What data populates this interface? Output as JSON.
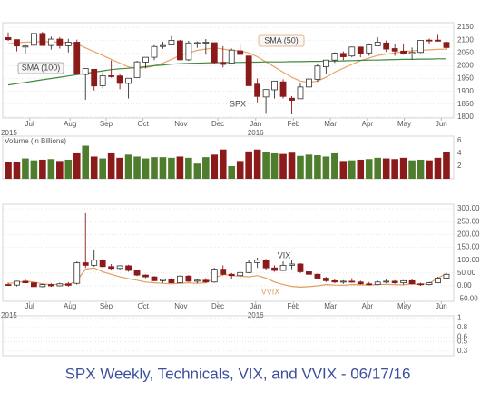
{
  "title": "SPX Weekly, Technicals, VIX, and VVIX - 06/17/16",
  "chart_data": [
    {
      "type": "candlestick",
      "name": "SPX",
      "up_color": "#ffffff",
      "down_color": "#8b1a1a",
      "open": [
        2110,
        2102,
        2073,
        2080,
        2126,
        2079,
        2104,
        2078,
        2092,
        1966,
        1986,
        1922,
        1961,
        1960,
        1931,
        1954,
        2014,
        2033,
        2075,
        2081,
        2097,
        2023,
        2090,
        2091,
        2090,
        2013,
        2010,
        2058,
        2038,
        1928,
        1878,
        1906,
        1937,
        1873,
        1871,
        1917,
        1947,
        1996,
        2022,
        2048,
        2038,
        2073,
        2050,
        2078,
        2089,
        2067,
        2057,
        2047,
        2052,
        2100,
        2100,
        2091
      ],
      "high": [
        2130,
        2102,
        2081,
        2127,
        2132,
        2114,
        2112,
        2105,
        2102,
        1989,
        1987,
        1975,
        2021,
        1970,
        1952,
        2019,
        2033,
        2080,
        2094,
        2116,
        2101,
        2097,
        2095,
        2104,
        2090,
        2076,
        2067,
        2081,
        2038,
        1950,
        1908,
        1940,
        1947,
        1881,
        1930,
        1962,
        2009,
        2022,
        2052,
        2056,
        2075,
        2074,
        2087,
        2111,
        2099,
        2084,
        2084,
        2071,
        2100,
        2106,
        2120,
        2095
      ],
      "low": [
        2097,
        2056,
        2044,
        2080,
        2079,
        2063,
        2067,
        2052,
        1970,
        1867,
        1903,
        1911,
        1953,
        1908,
        1872,
        1954,
        1990,
        2022,
        2066,
        2081,
        2022,
        2019,
        2070,
        2043,
        2007,
        1993,
        2005,
        2043,
        1922,
        1857,
        1812,
        1872,
        1872,
        1810,
        1871,
        1891,
        1937,
        1969,
        2011,
        2022,
        2033,
        2033,
        2039,
        2078,
        2054,
        2039,
        2043,
        2025,
        2049,
        2085,
        2094,
        2062
      ],
      "close": [
        2102,
        2077,
        2077,
        2126,
        2079,
        2104,
        2078,
        2092,
        1971,
        1989,
        1921,
        1961,
        1958,
        1931,
        1951,
        2015,
        2033,
        2075,
        2079,
        2099,
        2023,
        2089,
        2090,
        2092,
        2012,
        2005,
        2061,
        2044,
        1922,
        1880,
        1907,
        1940,
        1880,
        1865,
        1917,
        1948,
        1999,
        2022,
        2049,
        2035,
        2073,
        2047,
        2081,
        2092,
        2065,
        2057,
        2047,
        2052,
        2099,
        2099,
        2096,
        2071
      ],
      "series": [
        {
          "name": "SMA (50)",
          "color": "#e8a46a",
          "values": [
            2085,
            2090,
            2092,
            2093,
            2094,
            2093,
            2092,
            2090,
            2085,
            2070,
            2055,
            2040,
            2025,
            2010,
            1995,
            1990,
            1992,
            2000,
            2010,
            2025,
            2040,
            2050,
            2060,
            2065,
            2070,
            2065,
            2060,
            2058,
            2050,
            2035,
            2015,
            1995,
            1975,
            1955,
            1940,
            1935,
            1940,
            1955,
            1975,
            1990,
            2005,
            2020,
            2030,
            2040,
            2045,
            2050,
            2055,
            2058,
            2060,
            2062,
            2064,
            2065
          ]
        },
        {
          "name": "SMA (100)",
          "color": "#3d8a3d",
          "values": [
            1925,
            1930,
            1935,
            1940,
            1945,
            1950,
            1955,
            1960,
            1965,
            1970,
            1975,
            1980,
            1985,
            1988,
            1990,
            1993,
            1996,
            2000,
            2003,
            2006,
            2008,
            2009,
            2010,
            2011,
            2012,
            2012,
            2013,
            2013,
            2014,
            2014,
            2015,
            2015,
            2015,
            2016,
            2016,
            2017,
            2017,
            2018,
            2018,
            2019,
            2020,
            2021,
            2022,
            2022,
            2023,
            2024,
            2025,
            2025,
            2026,
            2026,
            2027,
            2027
          ]
        }
      ],
      "ylim": [
        1796,
        2168
      ],
      "yticks": [
        1800,
        1850,
        1900,
        1950,
        2000,
        2050,
        2100,
        2150
      ],
      "grid": true,
      "xticks": [
        {
          "value": 2.5,
          "label": "Jul"
        },
        {
          "value": 7.2,
          "label": "Aug"
        },
        {
          "value": 11.4,
          "label": "Sep"
        },
        {
          "value": 15.7,
          "label": "Oct"
        },
        {
          "value": 20.1,
          "label": "Nov"
        },
        {
          "value": 24.4,
          "label": "Dec"
        },
        {
          "value": 28.8,
          "label": "Jan"
        },
        {
          "value": 33.2,
          "label": "Feb"
        },
        {
          "value": 37.5,
          "label": "Mar"
        },
        {
          "value": 41.8,
          "label": "Apr"
        },
        {
          "value": 46.1,
          "label": "May"
        },
        {
          "value": 50.4,
          "label": "Jun"
        }
      ],
      "year_ticks": [
        {
          "value": 0.1,
          "label": "2015"
        },
        {
          "value": 28.8,
          "label": "2016"
        }
      ]
    },
    {
      "type": "bar",
      "title": "Volume (in Billions)",
      "up_color": "#4f7d2e",
      "down_color": "#8b1a1a",
      "values": [
        2.7,
        2.6,
        3.2,
        2.9,
        3.0,
        3.1,
        2.8,
        3.0,
        4.0,
        5.2,
        3.5,
        3.2,
        4.0,
        3.3,
        3.8,
        3.5,
        3.2,
        3.4,
        3.4,
        3.3,
        3.5,
        3.3,
        2.4,
        3.4,
        3.8,
        4.6,
        2.0,
        2.8,
        4.3,
        4.6,
        4.2,
        4.0,
        3.9,
        4.1,
        3.6,
        3.8,
        3.7,
        3.5,
        4.0,
        2.8,
        2.9,
        3.0,
        3.1,
        3.3,
        3.2,
        3.1,
        3.3,
        2.9,
        3.0,
        2.9,
        3.3,
        4.2
      ],
      "ylim": [
        0,
        6.7
      ],
      "yticks": [
        2,
        4,
        6
      ]
    },
    {
      "type": "candlestick",
      "name": "VIX",
      "up_color": "#ffffff",
      "down_color": "#8b1a1a",
      "open": [
        5,
        3,
        18,
        12,
        -3,
        5,
        0,
        8,
        10,
        90,
        80,
        100,
        75,
        68,
        78,
        60,
        42,
        35,
        20,
        25,
        12,
        38,
        18,
        22,
        15,
        65,
        45,
        40,
        52,
        90,
        100,
        70,
        60,
        80,
        85,
        55,
        45,
        30,
        20,
        15,
        18,
        15,
        8,
        5,
        15,
        18,
        12,
        20,
        8,
        5,
        12,
        30
      ],
      "high": [
        12,
        20,
        25,
        15,
        8,
        10,
        12,
        15,
        95,
        283,
        140,
        105,
        85,
        80,
        82,
        62,
        45,
        38,
        28,
        30,
        40,
        42,
        25,
        30,
        70,
        80,
        50,
        55,
        100,
        110,
        105,
        80,
        95,
        100,
        88,
        60,
        48,
        35,
        25,
        22,
        30,
        20,
        15,
        20,
        25,
        22,
        22,
        25,
        12,
        15,
        35,
        50
      ],
      "low": [
        0,
        -2,
        10,
        -5,
        -6,
        -4,
        -2,
        -3,
        5,
        70,
        75,
        70,
        60,
        62,
        55,
        38,
        30,
        18,
        12,
        10,
        10,
        15,
        10,
        12,
        12,
        40,
        25,
        30,
        50,
        70,
        60,
        55,
        58,
        65,
        50,
        40,
        25,
        15,
        10,
        8,
        12,
        5,
        2,
        3,
        10,
        8,
        5,
        5,
        0,
        2,
        10,
        25
      ],
      "close": [
        3,
        18,
        12,
        -3,
        5,
        0,
        8,
        2,
        90,
        80,
        100,
        75,
        68,
        78,
        60,
        42,
        35,
        20,
        25,
        12,
        38,
        18,
        22,
        15,
        65,
        45,
        40,
        52,
        90,
        100,
        70,
        60,
        80,
        85,
        55,
        45,
        30,
        20,
        15,
        18,
        15,
        8,
        5,
        15,
        18,
        12,
        20,
        8,
        5,
        12,
        30,
        45
      ],
      "series": [
        {
          "name": "VVIX",
          "color": "#e0a060",
          "values": [
            10,
            12,
            18,
            15,
            8,
            5,
            6,
            5,
            20,
            65,
            70,
            55,
            45,
            35,
            28,
            22,
            15,
            12,
            10,
            8,
            10,
            12,
            10,
            12,
            30,
            45,
            40,
            38,
            35,
            40,
            30,
            15,
            5,
            -2,
            -5,
            -3,
            0,
            5,
            3,
            2,
            5,
            4,
            3,
            5,
            6,
            5,
            4,
            8,
            5,
            10,
            30,
            48
          ]
        }
      ],
      "ylim": [
        -60,
        318
      ],
      "yticks": [
        {
          "value": -50,
          "label": "-50.00"
        },
        {
          "value": 0,
          "label": "0.00"
        },
        {
          "value": 50,
          "label": "50.00"
        },
        {
          "value": 100,
          "label": "100.00"
        },
        {
          "value": 150,
          "label": "150.00"
        },
        {
          "value": 200,
          "label": "200.00"
        },
        {
          "value": 250,
          "label": "250.00"
        },
        {
          "value": 300,
          "label": "300.00"
        }
      ],
      "grid": true,
      "xticks": [
        {
          "value": 2.5,
          "label": "Jul"
        },
        {
          "value": 7.2,
          "label": "Aug"
        },
        {
          "value": 11.4,
          "label": "Sep"
        },
        {
          "value": 15.7,
          "label": "Oct"
        },
        {
          "value": 20.1,
          "label": "Nov"
        },
        {
          "value": 24.4,
          "label": "Dec"
        },
        {
          "value": 28.8,
          "label": "Jan"
        },
        {
          "value": 33.2,
          "label": "Feb"
        },
        {
          "value": 37.5,
          "label": "Mar"
        },
        {
          "value": 41.8,
          "label": "Apr"
        },
        {
          "value": 46.1,
          "label": "May"
        },
        {
          "value": 50.4,
          "label": "Jun"
        }
      ],
      "year_ticks": [
        {
          "value": 0.1,
          "label": "2015"
        },
        {
          "value": 28.8,
          "label": "2016"
        }
      ]
    },
    {
      "type": "line",
      "ylim": [
        0.2,
        1.05
      ],
      "yticks": [
        0.3,
        0.5,
        0.6,
        0.8,
        1
      ],
      "grid": true
    }
  ]
}
